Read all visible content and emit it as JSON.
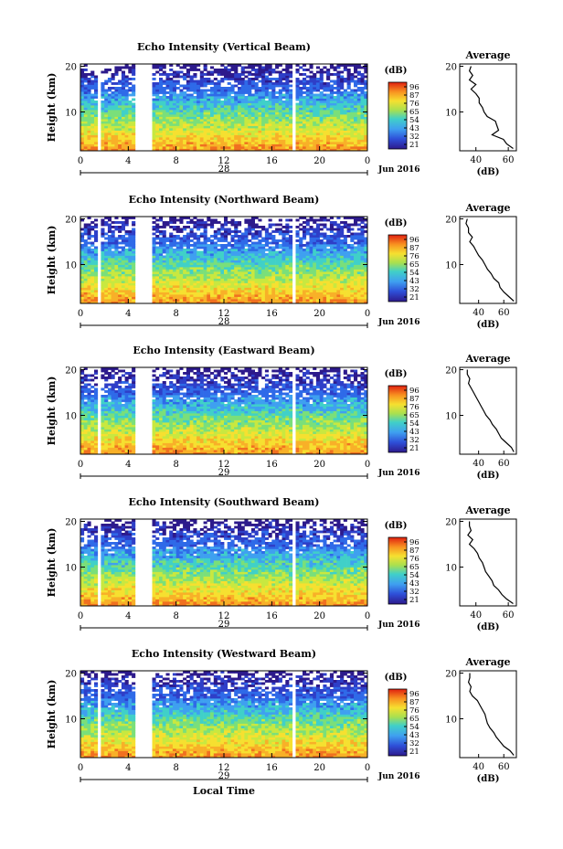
{
  "chart_data": [
    {
      "type": "heatmap",
      "title": "Echo Intensity (Vertical Beam)",
      "ylabel": "Height (km)",
      "ylim": [
        1.5,
        20.5
      ],
      "y_ticks": [
        "20",
        "10"
      ],
      "x_ticks": [
        "0",
        "4",
        "8",
        "12",
        "16",
        "20",
        "0"
      ],
      "xlim": [
        0,
        24
      ],
      "date_label": "28",
      "month_label": "Jun 2016",
      "colorbar_unit": "(dB)",
      "colorbar_ticks": [
        "96",
        "87",
        "76",
        "65",
        "54",
        "43",
        "32",
        "21"
      ],
      "data_gaps_hours": [
        [
          1.4,
          1.7
        ],
        [
          4.7,
          6.0
        ],
        [
          17.6,
          17.9
        ]
      ],
      "avg": {
        "title": "Average",
        "xlabel": "(dB)",
        "x_ticks": [
          "40",
          "60"
        ],
        "xlim": [
          30,
          65
        ],
        "y_ticks": [
          "20",
          "10"
        ],
        "heights": [
          2,
          3,
          4,
          5,
          6,
          7,
          8,
          9,
          10,
          11,
          12,
          13,
          14,
          15,
          16,
          17,
          18,
          19,
          20
        ],
        "values": [
          63,
          59,
          57,
          50,
          54,
          53,
          52,
          47,
          45,
          44,
          42,
          42,
          40,
          37,
          40,
          36,
          38,
          36,
          37
        ]
      }
    },
    {
      "type": "heatmap",
      "title": "Echo Intensity (Northward Beam)",
      "ylabel": "Height (km)",
      "ylim": [
        1.5,
        20.5
      ],
      "y_ticks": [
        "20",
        "10"
      ],
      "x_ticks": [
        "0",
        "4",
        "8",
        "12",
        "16",
        "20",
        "0"
      ],
      "xlim": [
        0,
        24
      ],
      "date_label": "28",
      "month_label": "Jun 2016",
      "colorbar_unit": "(dB)",
      "colorbar_ticks": [
        "96",
        "87",
        "76",
        "65",
        "54",
        "43",
        "32",
        "21"
      ],
      "data_gaps_hours": [
        [
          1.4,
          1.7
        ],
        [
          4.7,
          6.0
        ],
        [
          17.6,
          17.9
        ]
      ],
      "avg": {
        "title": "Average",
        "xlabel": "(dB)",
        "x_ticks": [
          "40",
          "60"
        ],
        "xlim": [
          25,
          70
        ],
        "y_ticks": [
          "20",
          "10"
        ],
        "heights": [
          2,
          3,
          4,
          5,
          6,
          7,
          8,
          9,
          10,
          11,
          12,
          13,
          14,
          15,
          16,
          17,
          18,
          19,
          20
        ],
        "values": [
          68,
          64,
          60,
          57,
          56,
          52,
          50,
          47,
          45,
          43,
          40,
          38,
          36,
          33,
          35,
          32,
          32,
          30,
          31
        ]
      }
    },
    {
      "type": "heatmap",
      "title": "Echo Intensity (Eastward Beam)",
      "ylabel": "Height (km)",
      "ylim": [
        1.5,
        20.5
      ],
      "y_ticks": [
        "20",
        "10"
      ],
      "x_ticks": [
        "0",
        "4",
        "8",
        "12",
        "16",
        "20",
        "0"
      ],
      "xlim": [
        0,
        24
      ],
      "date_label": "29",
      "month_label": "Jun 2016",
      "colorbar_unit": "(dB)",
      "colorbar_ticks": [
        "96",
        "87",
        "76",
        "65",
        "54",
        "43",
        "32",
        "21"
      ],
      "data_gaps_hours": [
        [
          1.4,
          1.7
        ],
        [
          4.7,
          6.0
        ],
        [
          17.6,
          17.9
        ]
      ],
      "avg": {
        "title": "Average",
        "xlabel": "(dB)",
        "x_ticks": [
          "40",
          "60"
        ],
        "xlim": [
          25,
          70
        ],
        "y_ticks": [
          "20",
          "10"
        ],
        "heights": [
          2,
          3,
          4,
          5,
          6,
          7,
          8,
          9,
          10,
          11,
          12,
          13,
          14,
          15,
          16,
          17,
          18,
          19,
          20
        ],
        "values": [
          68,
          66,
          62,
          58,
          56,
          54,
          51,
          49,
          46,
          44,
          42,
          40,
          38,
          36,
          34,
          32,
          33,
          31,
          31
        ]
      }
    },
    {
      "type": "heatmap",
      "title": "Echo Intensity (Southward Beam)",
      "ylabel": "Height (km)",
      "ylim": [
        1.5,
        20.5
      ],
      "y_ticks": [
        "20",
        "10"
      ],
      "x_ticks": [
        "0",
        "4",
        "8",
        "12",
        "16",
        "20",
        "0"
      ],
      "xlim": [
        0,
        24
      ],
      "date_label": "29",
      "month_label": "Jun 2016",
      "colorbar_unit": "(dB)",
      "colorbar_ticks": [
        "96",
        "87",
        "76",
        "65",
        "54",
        "43",
        "32",
        "21"
      ],
      "data_gaps_hours": [
        [
          1.4,
          1.7
        ],
        [
          4.7,
          6.0
        ],
        [
          17.6,
          17.9
        ]
      ],
      "avg": {
        "title": "Average",
        "xlabel": "(dB)",
        "x_ticks": [
          "40",
          "60"
        ],
        "xlim": [
          30,
          65
        ],
        "y_ticks": [
          "20",
          "10"
        ],
        "heights": [
          2,
          3,
          4,
          5,
          6,
          7,
          8,
          9,
          10,
          11,
          12,
          13,
          14,
          15,
          16,
          17,
          18,
          19,
          20
        ],
        "values": [
          63,
          59,
          56,
          54,
          51,
          50,
          48,
          46,
          45,
          44,
          42,
          41,
          39,
          36,
          38,
          35,
          37,
          36,
          36
        ]
      }
    },
    {
      "type": "heatmap",
      "title": "Echo Intensity (Westward Beam)",
      "ylabel": "Height (km)",
      "xlabel": "Local Time",
      "ylim": [
        1.5,
        20.5
      ],
      "y_ticks": [
        "20",
        "10"
      ],
      "x_ticks": [
        "0",
        "4",
        "8",
        "12",
        "16",
        "20",
        "0"
      ],
      "xlim": [
        0,
        24
      ],
      "date_label": "29",
      "month_label": "Jun 2016",
      "colorbar_unit": "(dB)",
      "colorbar_ticks": [
        "96",
        "87",
        "76",
        "65",
        "54",
        "43",
        "32",
        "21"
      ],
      "data_gaps_hours": [
        [
          1.4,
          1.7
        ],
        [
          4.7,
          6.0
        ],
        [
          17.6,
          17.9
        ]
      ],
      "avg": {
        "title": "Average",
        "xlabel": "(dB)",
        "x_ticks": [
          "40",
          "60"
        ],
        "xlim": [
          25,
          70
        ],
        "y_ticks": [
          "20",
          "10"
        ],
        "heights": [
          2,
          3,
          4,
          5,
          6,
          7,
          8,
          9,
          10,
          11,
          12,
          13,
          14,
          15,
          16,
          17,
          18,
          19,
          20
        ],
        "values": [
          68,
          65,
          60,
          57,
          54,
          52,
          49,
          47,
          46,
          45,
          43,
          41,
          39,
          35,
          33,
          34,
          32,
          33,
          33
        ]
      }
    }
  ]
}
